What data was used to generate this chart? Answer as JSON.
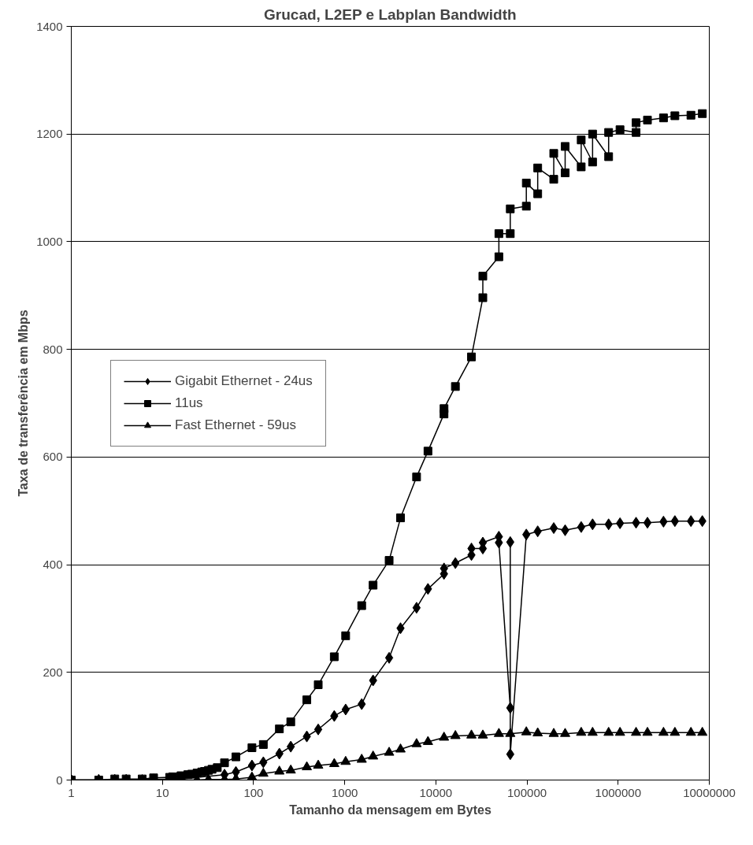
{
  "chart_data": {
    "type": "line",
    "title": "Grucad, L2EP e Labplan Bandwidth",
    "xlabel": "Tamanho da mensagem em Bytes",
    "ylabel": "Taxa de transferência em Mbps",
    "log": "x",
    "xlim": [
      1,
      10000000
    ],
    "xticks": [
      1,
      10,
      100,
      1000,
      10000,
      100000,
      1000000,
      10000000
    ],
    "ylim": [
      0,
      1400
    ],
    "yticks": [
      0,
      200,
      400,
      600,
      800,
      1000,
      1200,
      1400
    ],
    "grid": "y",
    "legend": "left",
    "line_style": "solid",
    "series": [
      {
        "name": "Gigabit Ethernet - 24us",
        "color": "#000000",
        "marker": "diamond",
        "x": [
          1,
          2,
          3,
          4,
          8,
          12,
          16,
          48,
          64,
          96,
          128,
          192,
          256,
          384,
          512,
          768,
          1024,
          1536,
          2048,
          3072,
          4096,
          6144,
          8192,
          12288,
          12291,
          16384,
          24576,
          24579,
          32768,
          32771,
          49152,
          49155,
          65536,
          65539,
          65542,
          98304,
          131072,
          196608,
          262144,
          393216,
          524288,
          786432,
          1048576,
          1572864,
          2097152,
          3145728,
          4194304,
          6291456,
          8388608
        ],
        "values": [
          0,
          0,
          0,
          0,
          1,
          2,
          2,
          10,
          15,
          27,
          33,
          49,
          62,
          81,
          94,
          119,
          131,
          141,
          185,
          227,
          282,
          320,
          355,
          383,
          393,
          403,
          418,
          430,
          430,
          441,
          452,
          441,
          134,
          442,
          48,
          456,
          462,
          468,
          464,
          470,
          475,
          475,
          477,
          478,
          478,
          480,
          481,
          481,
          481
        ]
      },
      {
        "name": "11us",
        "color": "#000000",
        "marker": "square",
        "x": [
          1,
          2,
          3,
          4,
          6,
          8,
          12,
          13,
          16,
          19,
          21,
          24,
          27,
          29,
          32,
          35,
          40,
          48,
          64,
          96,
          128,
          192,
          256,
          384,
          512,
          768,
          1024,
          1536,
          2048,
          3072,
          4096,
          6144,
          8192,
          12288,
          12291,
          16384,
          24576,
          32768,
          32771,
          49152,
          49155,
          65536,
          65539,
          98304,
          98307,
          131072,
          131075,
          196608,
          196611,
          262144,
          262147,
          393216,
          393219,
          524288,
          524291,
          786432,
          786435,
          1048576,
          1572864,
          1572867,
          2097152,
          3145728,
          4194304,
          6291456,
          8388608
        ],
        "values": [
          0,
          0,
          2,
          2,
          2,
          4,
          5,
          6,
          8,
          10,
          11,
          13,
          15,
          16,
          18,
          20,
          23,
          32,
          43,
          60,
          66,
          95,
          108,
          149,
          177,
          229,
          268,
          324,
          362,
          408,
          487,
          563,
          611,
          680,
          690,
          731,
          786,
          896,
          936,
          972,
          1015,
          1015,
          1061,
          1066,
          1109,
          1089,
          1137,
          1116,
          1164,
          1128,
          1177,
          1139,
          1189,
          1148,
          1200,
          1158,
          1203,
          1208,
          1203,
          1221,
          1226,
          1230,
          1234,
          1235,
          1238
        ]
      },
      {
        "name": "Fast Ethernet - 59us",
        "color": "#000000",
        "marker": "triangle",
        "x": [
          1,
          2,
          3,
          4,
          6,
          8,
          12,
          16,
          24,
          32,
          48,
          64,
          96,
          128,
          192,
          256,
          384,
          512,
          768,
          1024,
          1536,
          2048,
          3072,
          4096,
          6144,
          8192,
          12288,
          16384,
          24576,
          32768,
          49152,
          65536,
          98304,
          131072,
          196608,
          262144,
          393216,
          524288,
          786432,
          1048576,
          1572864,
          2097152,
          3145728,
          4194304,
          6291456,
          8388608
        ],
        "values": [
          0,
          0,
          0,
          0,
          0,
          0,
          0,
          0,
          0,
          1,
          1,
          2,
          5,
          12,
          16,
          18,
          24,
          27,
          30,
          34,
          38,
          44,
          51,
          57,
          67,
          71,
          79,
          82,
          83,
          83,
          86,
          86,
          89,
          87,
          86,
          86,
          88,
          88,
          88,
          88,
          88,
          88,
          88,
          88,
          88,
          88
        ]
      }
    ]
  }
}
